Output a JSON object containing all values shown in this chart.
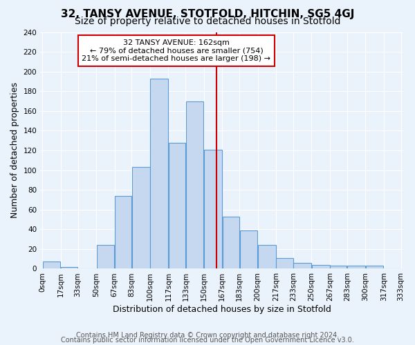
{
  "title": "32, TANSY AVENUE, STOTFOLD, HITCHIN, SG5 4GJ",
  "subtitle": "Size of property relative to detached houses in Stotfold",
  "xlabel": "Distribution of detached houses by size in Stotfold",
  "ylabel": "Number of detached properties",
  "bin_labels": [
    "0sqm",
    "17sqm",
    "33sqm",
    "50sqm",
    "67sqm",
    "83sqm",
    "100sqm",
    "117sqm",
    "133sqm",
    "150sqm",
    "167sqm",
    "183sqm",
    "200sqm",
    "217sqm",
    "233sqm",
    "250sqm",
    "267sqm",
    "283sqm",
    "300sqm",
    "317sqm",
    "333sqm"
  ],
  "bin_edges": [
    0,
    17,
    33,
    50,
    67,
    83,
    100,
    117,
    133,
    150,
    167,
    183,
    200,
    217,
    233,
    250,
    267,
    283,
    300,
    317,
    333
  ],
  "bar_heights": [
    7,
    2,
    0,
    24,
    74,
    103,
    193,
    128,
    170,
    121,
    53,
    39,
    24,
    11,
    6,
    4,
    3,
    3,
    3,
    0
  ],
  "bar_color": "#c5d8f0",
  "bar_edge_color": "#5b9bd5",
  "vline_x": 162,
  "vline_color": "#cc0000",
  "annotation_title": "32 TANSY AVENUE: 162sqm",
  "annotation_line1": "← 79% of detached houses are smaller (754)",
  "annotation_line2": "21% of semi-detached houses are larger (198) →",
  "annotation_box_color": "#ffffff",
  "annotation_box_edge_color": "#cc0000",
  "ylim": [
    0,
    240
  ],
  "yticks": [
    0,
    20,
    40,
    60,
    80,
    100,
    120,
    140,
    160,
    180,
    200,
    220,
    240
  ],
  "footer1": "Contains HM Land Registry data © Crown copyright and database right 2024.",
  "footer2": "Contains public sector information licensed under the Open Government Licence v3.0.",
  "bg_color": "#eaf2fb",
  "plot_bg_color": "#eaf2fb",
  "grid_color": "#ffffff",
  "title_fontsize": 11,
  "subtitle_fontsize": 10,
  "axis_label_fontsize": 9,
  "tick_fontsize": 7.5,
  "footer_fontsize": 7
}
